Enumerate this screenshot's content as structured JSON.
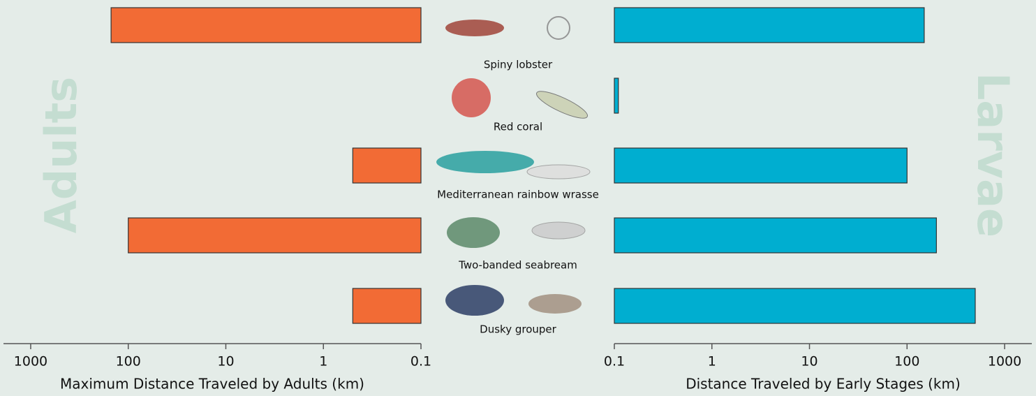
{
  "chart_data": [
    {
      "type": "bar",
      "orientation": "horizontal",
      "panel_label": "Adults",
      "categories": [
        "Spiny lobster",
        "Red coral",
        "Mediterranean rainbow wrasse",
        "Two-banded seabream",
        "Dusky grouper"
      ],
      "values": [
        150,
        null,
        0.5,
        100,
        0.5
      ],
      "color": "#f26b35",
      "xlabel": "Maximum Distance Traveled by Adults (km)",
      "xscale": "log",
      "x_reversed": true,
      "xlim": [
        0.1,
        1900
      ],
      "xticks": [
        0.1,
        1,
        10,
        100,
        1000
      ]
    },
    {
      "type": "bar",
      "orientation": "horizontal",
      "panel_label": "Larvae",
      "values": [
        150,
        0.11,
        100,
        200,
        500
      ],
      "color": "#00aed0",
      "xlabel": "Distance Traveled by Early Stages (km)",
      "xscale": "log",
      "x_reversed": false,
      "xlim": [
        0.1,
        1900
      ],
      "xticks": [
        0.1,
        1,
        10,
        100,
        1000
      ]
    }
  ]
}
